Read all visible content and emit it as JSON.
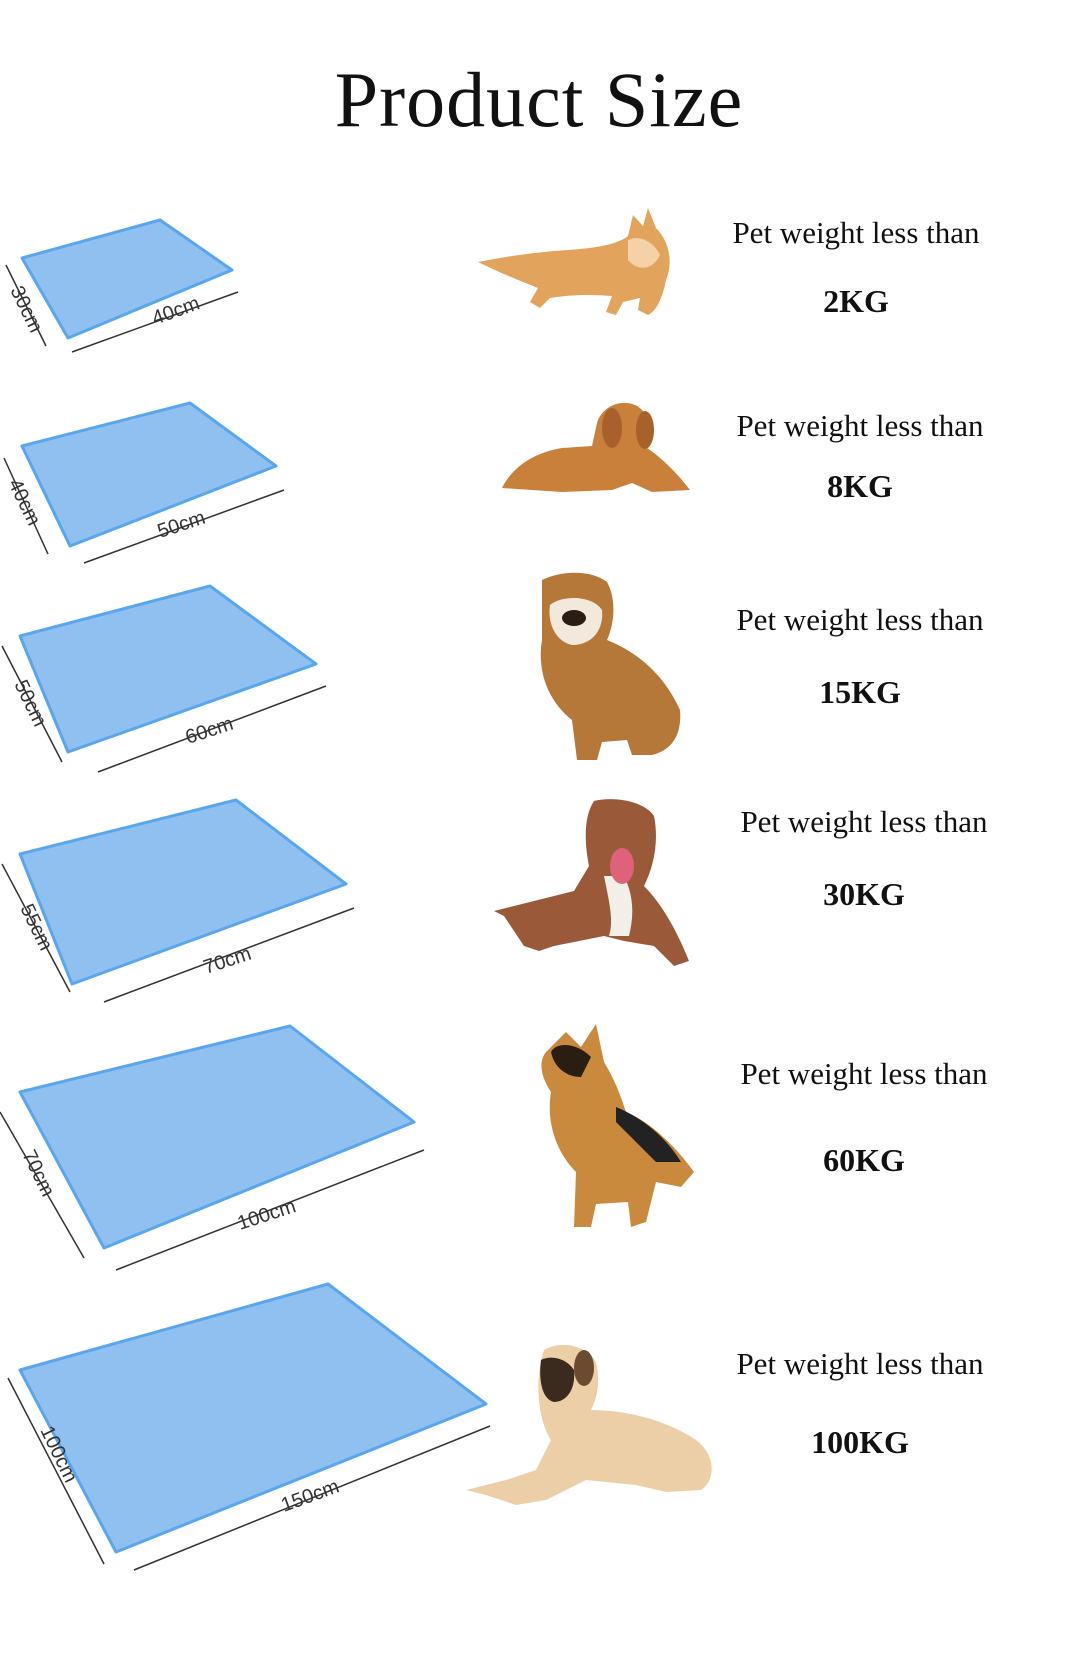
{
  "title": "Product Size",
  "colors": {
    "mat": "#8fc0ef",
    "mat_edge": "#5aa6ee",
    "mat_pattern": "#7fb2e2"
  },
  "sizes": [
    {
      "length": "40cm",
      "width": "30cm",
      "lead": "Pet weight less than",
      "weight": "2KG",
      "pet": "cat-icon"
    },
    {
      "length": "50cm",
      "width": "40cm",
      "lead": "Pet weight less than",
      "weight": "8KG",
      "pet": "puppy-icon"
    },
    {
      "length": "60cm",
      "width": "50cm",
      "lead": "Pet weight less than",
      "weight": "15KG",
      "pet": "bulldog-icon"
    },
    {
      "length": "70cm",
      "width": "55cm",
      "lead": "Pet weight less than",
      "weight": "30KG",
      "pet": "pitbull-icon"
    },
    {
      "length": "100cm",
      "width": "70cm",
      "lead": "Pet weight less than",
      "weight": "60KG",
      "pet": "shepherd-icon"
    },
    {
      "length": "150cm",
      "width": "100cm",
      "lead": "Pet weight less than",
      "weight": "100KG",
      "pet": "mastiff-icon"
    }
  ]
}
